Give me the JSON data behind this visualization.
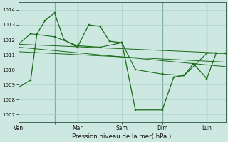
{
  "bg_color": "#cce8e0",
  "grid_color": "#aad0c8",
  "line_color": "#1a6b1a",
  "xlabel": "Pression niveau de la mer( hPa )",
  "ylim": [
    1006.5,
    1014.5
  ],
  "yticks": [
    1007,
    1008,
    1009,
    1010,
    1011,
    1012,
    1013,
    1014
  ],
  "xlim": [
    0,
    1.0
  ],
  "xtick_positions": [
    0.0,
    0.175,
    0.285,
    0.5,
    0.695,
    0.91
  ],
  "xtick_labels": [
    "Ven",
    "",
    "Mar",
    "Sam",
    "Dim",
    "Lun"
  ],
  "vlines": [
    0.175,
    0.285,
    0.695,
    0.91
  ],
  "series1_x": [
    0.0,
    0.06,
    0.09,
    0.13,
    0.175,
    0.22,
    0.285,
    0.34,
    0.395,
    0.44,
    0.5,
    0.565,
    0.695,
    0.75,
    0.8,
    0.845,
    0.91,
    0.955,
    1.0
  ],
  "series1_y": [
    1008.8,
    1009.3,
    1012.4,
    1013.3,
    1013.8,
    1012.0,
    1011.5,
    1013.0,
    1012.9,
    1011.9,
    1011.8,
    1007.3,
    1007.3,
    1009.5,
    1009.6,
    1010.4,
    1009.4,
    1011.1,
    1011.1
  ],
  "series2_x": [
    0.0,
    0.06,
    0.175,
    0.285,
    0.395,
    0.5,
    0.565,
    0.695,
    0.8,
    0.91,
    1.0
  ],
  "series2_y": [
    1011.7,
    1012.4,
    1012.2,
    1011.6,
    1011.5,
    1011.8,
    1010.0,
    1009.7,
    1009.6,
    1011.1,
    1011.1
  ],
  "trend1_x": [
    0.0,
    1.0
  ],
  "trend1_y": [
    1011.7,
    1011.1
  ],
  "trend2_x": [
    0.0,
    1.0
  ],
  "trend2_y": [
    1011.5,
    1010.2
  ],
  "trend3_x": [
    0.0,
    1.0
  ],
  "trend3_y": [
    1011.2,
    1010.5
  ]
}
